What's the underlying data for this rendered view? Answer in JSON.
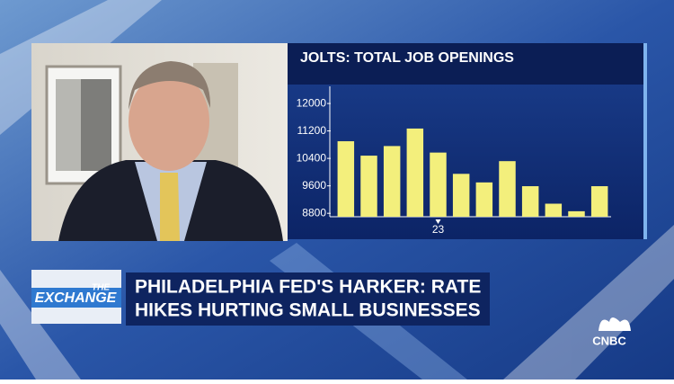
{
  "chart_data": {
    "type": "bar",
    "title": "JOLTS: TOTAL JOB OPENINGS",
    "categories": [
      null,
      null,
      null,
      null,
      "23",
      null,
      null,
      null,
      null,
      null,
      null,
      null
    ],
    "values": [
      10900,
      10480,
      10760,
      11270,
      10570,
      9950,
      9700,
      10320,
      9590,
      9080,
      8860,
      9590
    ],
    "color": "#f3ef7c",
    "ylim": [
      8700,
      12500
    ],
    "yticks": [
      8800,
      9600,
      10400,
      11200,
      12000
    ]
  },
  "show": {
    "logo_top": "THE",
    "logo_main": "EXCHANGE"
  },
  "headline": {
    "line1": "PHILADELPHIA FED'S HARKER: RATE",
    "line2": "HIKES HURTING SMALL BUSINESSES"
  },
  "network": "CNBC"
}
